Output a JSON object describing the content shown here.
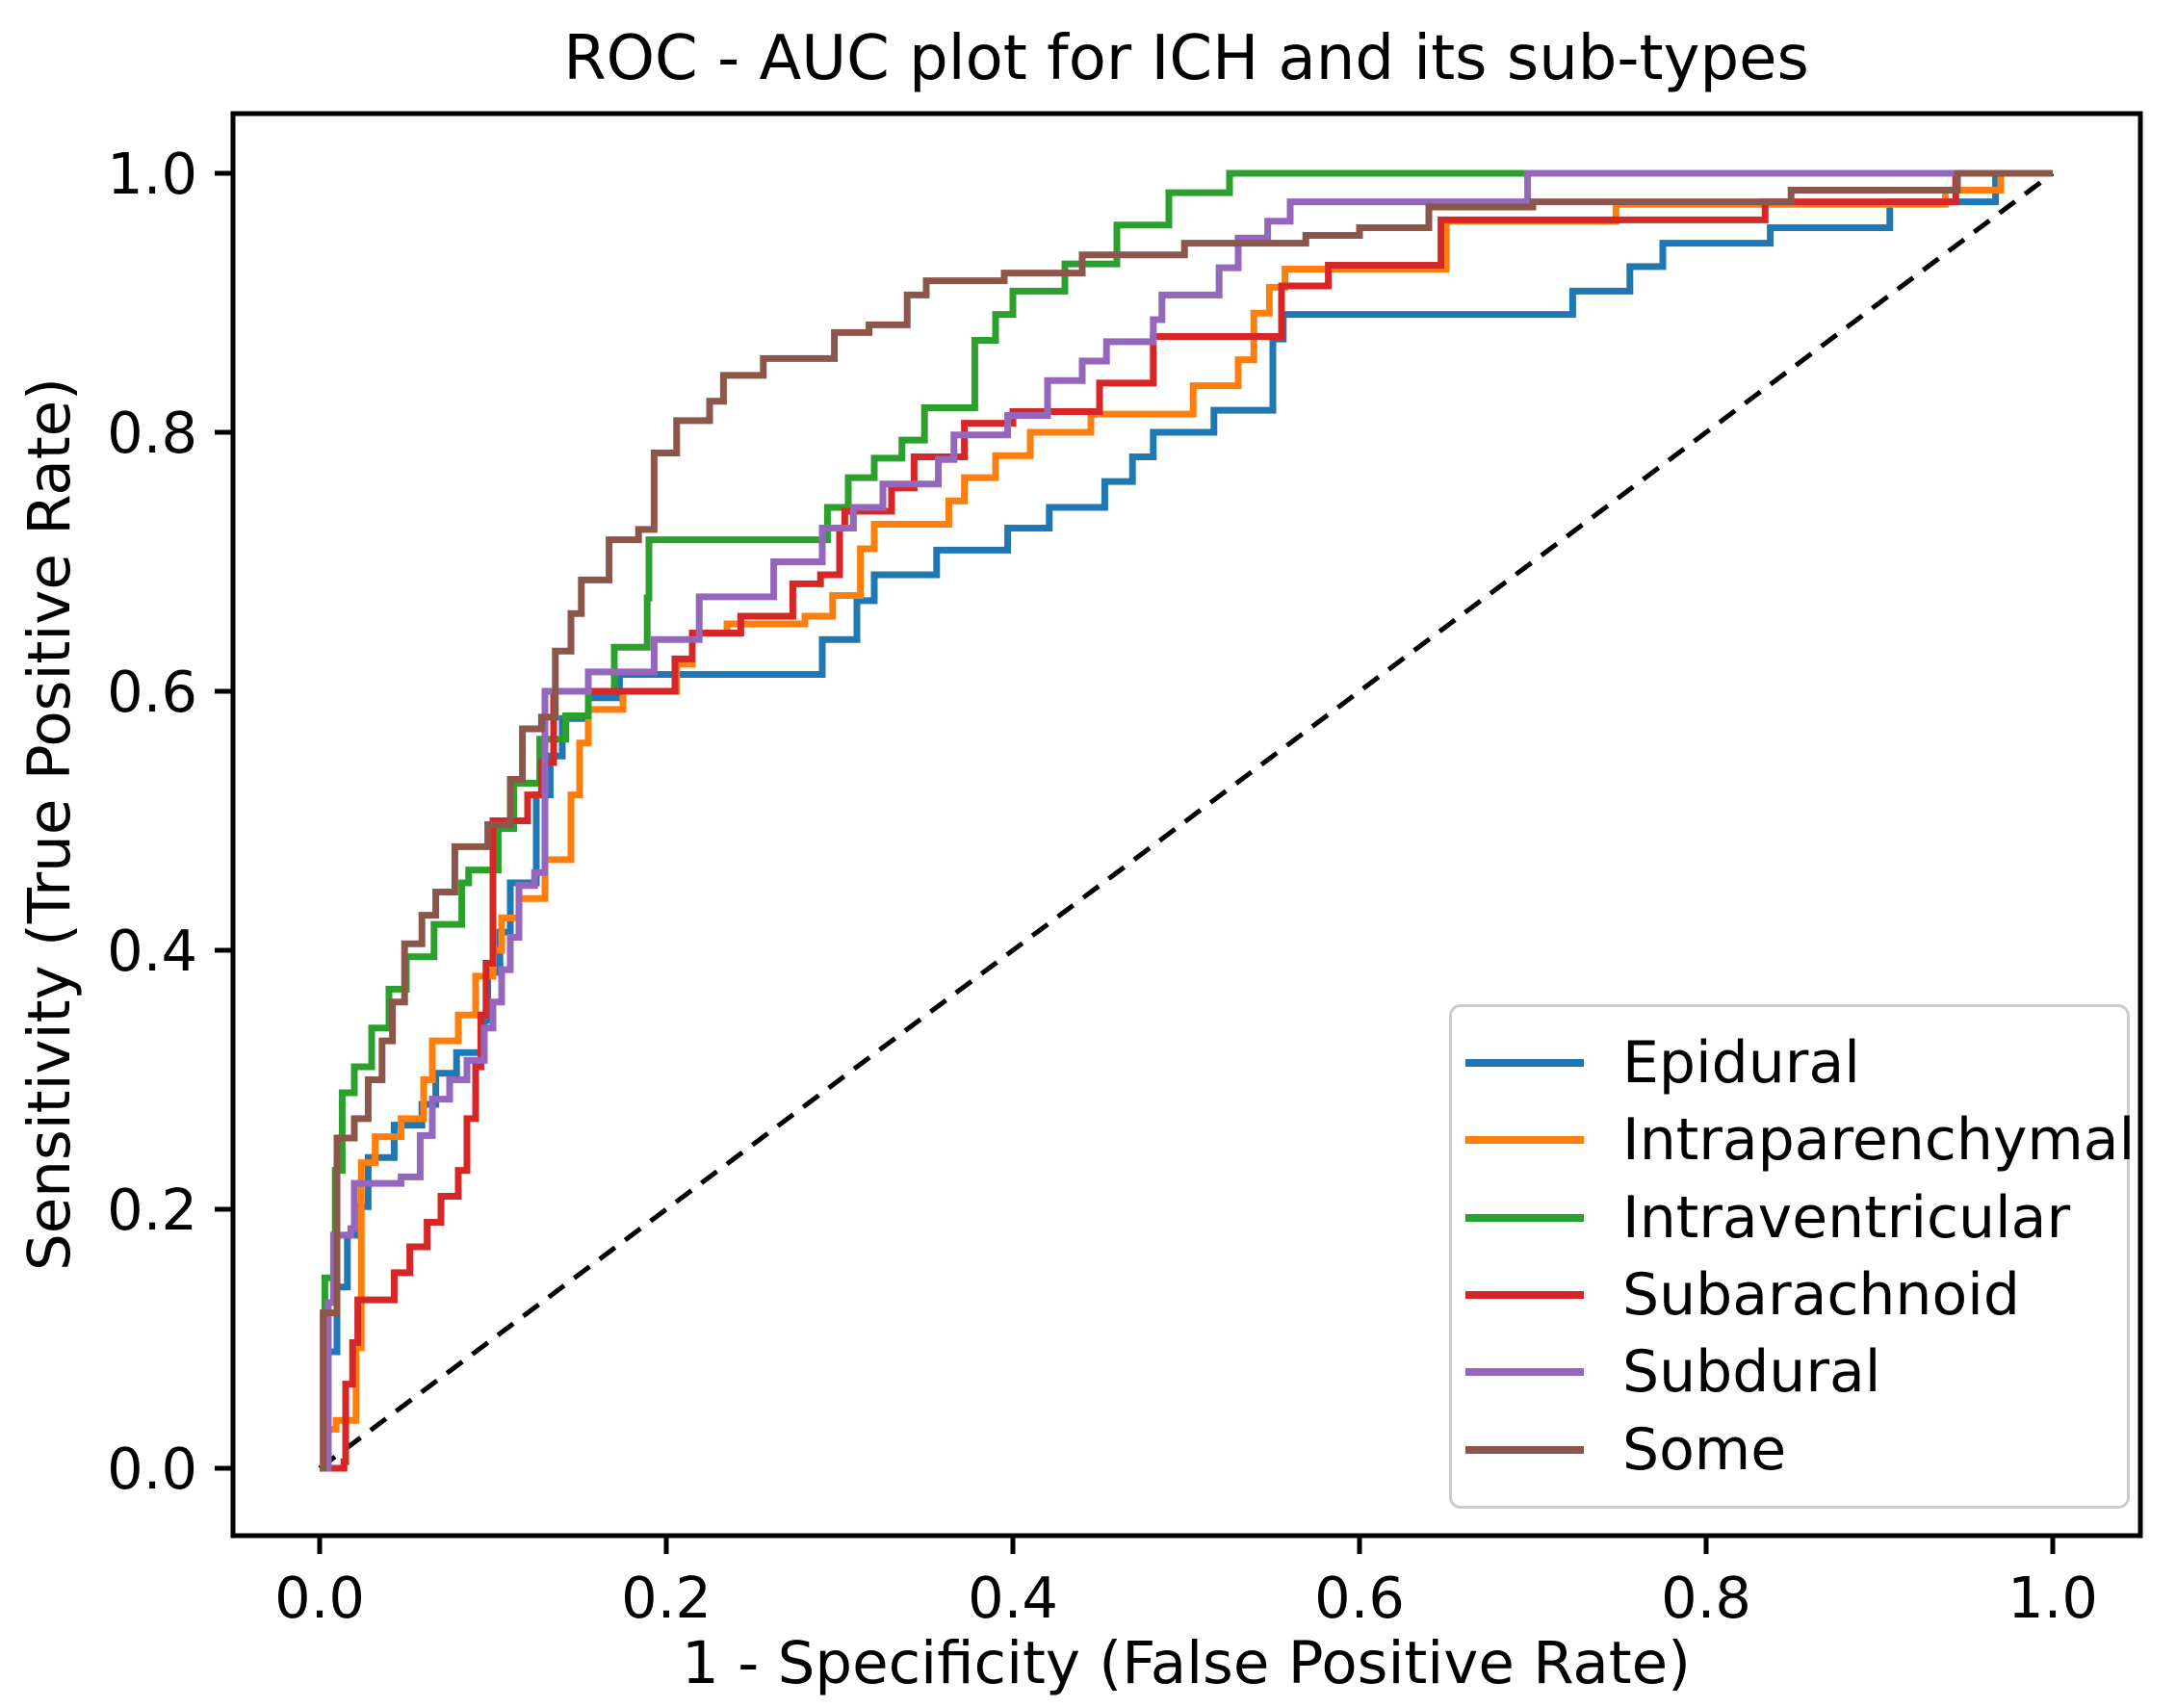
{
  "chart_data": {
    "type": "line",
    "subtype": "roc-step-curves",
    "title": "ROC - AUC plot for ICH and its sub-types",
    "xlabel": "1 - Specificity (False Positive Rate)",
    "ylabel": "Sensitivity (True Positive Rate)",
    "xlim": [
      -0.05,
      1.05
    ],
    "ylim": [
      -0.052,
      1.046
    ],
    "xticks": [
      0.0,
      0.2,
      0.4,
      0.6,
      0.8,
      1.0
    ],
    "yticks": [
      0.0,
      0.2,
      0.4,
      0.6,
      0.8,
      1.0
    ],
    "xtick_labels": [
      "0.0",
      "0.2",
      "0.4",
      "0.6",
      "0.8",
      "1.0"
    ],
    "ytick_labels": [
      "0.0",
      "0.2",
      "0.4",
      "0.6",
      "0.8",
      "1.0"
    ],
    "grid": false,
    "axis_color": "#000000",
    "legend_position": "lower right",
    "diagonal": {
      "name": "chance-line",
      "style": "dashed",
      "color": "#000000",
      "from": [
        0,
        0
      ],
      "to": [
        1,
        1
      ]
    },
    "series": [
      {
        "name": "Epidural",
        "color": "#1f77b4",
        "points": [
          [
            0,
            0
          ],
          [
            0.005,
            0.09
          ],
          [
            0.01,
            0.14
          ],
          [
            0.016,
            0.18
          ],
          [
            0.021,
            0.202
          ],
          [
            0.028,
            0.24
          ],
          [
            0.043,
            0.265
          ],
          [
            0.059,
            0.281
          ],
          [
            0.067,
            0.305
          ],
          [
            0.079,
            0.321
          ],
          [
            0.095,
            0.346
          ],
          [
            0.097,
            0.383
          ],
          [
            0.104,
            0.414
          ],
          [
            0.11,
            0.452
          ],
          [
            0.125,
            0.52
          ],
          [
            0.133,
            0.55
          ],
          [
            0.14,
            0.579
          ],
          [
            0.155,
            0.595
          ],
          [
            0.173,
            0.613
          ],
          [
            0.29,
            0.64
          ],
          [
            0.31,
            0.67
          ],
          [
            0.32,
            0.69
          ],
          [
            0.356,
            0.709
          ],
          [
            0.397,
            0.726
          ],
          [
            0.421,
            0.742
          ],
          [
            0.453,
            0.762
          ],
          [
            0.469,
            0.781
          ],
          [
            0.481,
            0.8
          ],
          [
            0.516,
            0.817
          ],
          [
            0.55,
            0.872
          ],
          [
            0.556,
            0.891
          ],
          [
            0.723,
            0.909
          ],
          [
            0.756,
            0.928
          ],
          [
            0.775,
            0.946
          ],
          [
            0.837,
            0.958
          ],
          [
            0.906,
            0.978
          ],
          [
            0.967,
            1.0
          ],
          [
            1,
            1
          ]
        ]
      },
      {
        "name": "Intraparenchymal",
        "color": "#ff7f0e",
        "points": [
          [
            0,
            0
          ],
          [
            0.004,
            0.03
          ],
          [
            0.0095,
            0.037
          ],
          [
            0.021,
            0.093
          ],
          [
            0.024,
            0.236
          ],
          [
            0.032,
            0.256
          ],
          [
            0.047,
            0.27
          ],
          [
            0.06,
            0.3
          ],
          [
            0.065,
            0.33
          ],
          [
            0.08,
            0.35
          ],
          [
            0.09,
            0.38
          ],
          [
            0.1,
            0.4
          ],
          [
            0.105,
            0.425
          ],
          [
            0.115,
            0.44
          ],
          [
            0.13,
            0.47
          ],
          [
            0.145,
            0.52
          ],
          [
            0.15,
            0.56
          ],
          [
            0.155,
            0.586
          ],
          [
            0.175,
            0.6
          ],
          [
            0.206,
            0.621
          ],
          [
            0.215,
            0.645
          ],
          [
            0.235,
            0.652
          ],
          [
            0.28,
            0.658
          ],
          [
            0.296,
            0.674
          ],
          [
            0.312,
            0.71
          ],
          [
            0.32,
            0.729
          ],
          [
            0.363,
            0.747
          ],
          [
            0.372,
            0.765
          ],
          [
            0.39,
            0.782
          ],
          [
            0.41,
            0.8
          ],
          [
            0.445,
            0.814
          ],
          [
            0.504,
            0.836
          ],
          [
            0.53,
            0.856
          ],
          [
            0.539,
            0.892
          ],
          [
            0.548,
            0.912
          ],
          [
            0.557,
            0.926
          ],
          [
            0.65,
            0.963
          ],
          [
            0.748,
            0.976
          ],
          [
            0.938,
            0.987
          ],
          [
            0.97,
            1.0
          ],
          [
            1,
            1
          ]
        ]
      },
      {
        "name": "Intraventricular",
        "color": "#2ca02c",
        "points": [
          [
            0,
            0
          ],
          [
            0.003,
            0.147
          ],
          [
            0.009,
            0.23
          ],
          [
            0.013,
            0.29
          ],
          [
            0.02,
            0.31
          ],
          [
            0.03,
            0.34
          ],
          [
            0.04,
            0.37
          ],
          [
            0.05,
            0.395
          ],
          [
            0.066,
            0.42
          ],
          [
            0.082,
            0.452
          ],
          [
            0.086,
            0.462
          ],
          [
            0.103,
            0.494
          ],
          [
            0.112,
            0.529
          ],
          [
            0.127,
            0.563
          ],
          [
            0.142,
            0.581
          ],
          [
            0.155,
            0.6
          ],
          [
            0.17,
            0.634
          ],
          [
            0.189,
            0.672
          ],
          [
            0.19,
            0.717
          ],
          [
            0.293,
            0.742
          ],
          [
            0.305,
            0.765
          ],
          [
            0.32,
            0.78
          ],
          [
            0.336,
            0.794
          ],
          [
            0.349,
            0.819
          ],
          [
            0.378,
            0.871
          ],
          [
            0.39,
            0.891
          ],
          [
            0.4,
            0.909
          ],
          [
            0.43,
            0.93
          ],
          [
            0.46,
            0.96
          ],
          [
            0.49,
            0.985
          ],
          [
            0.525,
            1.0
          ],
          [
            1,
            1
          ]
        ]
      },
      {
        "name": "Subarachnoid",
        "color": "#d62728",
        "points": [
          [
            0,
            0
          ],
          [
            0.014,
            0.005
          ],
          [
            0.015,
            0.065
          ],
          [
            0.019,
            0.097
          ],
          [
            0.022,
            0.13
          ],
          [
            0.043,
            0.151
          ],
          [
            0.052,
            0.171
          ],
          [
            0.062,
            0.19
          ],
          [
            0.07,
            0.21
          ],
          [
            0.08,
            0.23
          ],
          [
            0.085,
            0.27
          ],
          [
            0.09,
            0.31
          ],
          [
            0.093,
            0.35
          ],
          [
            0.096,
            0.39
          ],
          [
            0.1,
            0.5
          ],
          [
            0.12,
            0.52
          ],
          [
            0.128,
            0.545
          ],
          [
            0.135,
            0.6
          ],
          [
            0.205,
            0.625
          ],
          [
            0.215,
            0.645
          ],
          [
            0.243,
            0.658
          ],
          [
            0.273,
            0.683
          ],
          [
            0.289,
            0.69
          ],
          [
            0.3,
            0.726
          ],
          [
            0.303,
            0.739
          ],
          [
            0.33,
            0.757
          ],
          [
            0.343,
            0.781
          ],
          [
            0.372,
            0.807
          ],
          [
            0.4,
            0.816
          ],
          [
            0.45,
            0.838
          ],
          [
            0.481,
            0.874
          ],
          [
            0.555,
            0.913
          ],
          [
            0.582,
            0.929
          ],
          [
            0.647,
            0.964
          ],
          [
            0.834,
            0.978
          ],
          [
            0.944,
            1.0
          ],
          [
            1,
            1
          ]
        ]
      },
      {
        "name": "Subdural",
        "color": "#9467bd",
        "points": [
          [
            0,
            0
          ],
          [
            0.005,
            0.128
          ],
          [
            0.008,
            0.18
          ],
          [
            0.018,
            0.185
          ],
          [
            0.02,
            0.22
          ],
          [
            0.047,
            0.225
          ],
          [
            0.058,
            0.257
          ],
          [
            0.065,
            0.285
          ],
          [
            0.075,
            0.3
          ],
          [
            0.085,
            0.315
          ],
          [
            0.095,
            0.34
          ],
          [
            0.1,
            0.36
          ],
          [
            0.105,
            0.385
          ],
          [
            0.11,
            0.41
          ],
          [
            0.115,
            0.45
          ],
          [
            0.124,
            0.46
          ],
          [
            0.13,
            0.6
          ],
          [
            0.155,
            0.615
          ],
          [
            0.193,
            0.64
          ],
          [
            0.219,
            0.673
          ],
          [
            0.262,
            0.7
          ],
          [
            0.29,
            0.726
          ],
          [
            0.308,
            0.742
          ],
          [
            0.325,
            0.76
          ],
          [
            0.357,
            0.779
          ],
          [
            0.366,
            0.798
          ],
          [
            0.397,
            0.813
          ],
          [
            0.42,
            0.84
          ],
          [
            0.44,
            0.855
          ],
          [
            0.454,
            0.87
          ],
          [
            0.481,
            0.887
          ],
          [
            0.486,
            0.906
          ],
          [
            0.519,
            0.927
          ],
          [
            0.53,
            0.95
          ],
          [
            0.547,
            0.963
          ],
          [
            0.56,
            0.978
          ],
          [
            0.697,
            1.0
          ],
          [
            1,
            1
          ]
        ]
      },
      {
        "name": "Some",
        "color": "#8c564b",
        "points": [
          [
            0,
            0
          ],
          [
            0.002,
            0.12
          ],
          [
            0.01,
            0.255
          ],
          [
            0.02,
            0.27
          ],
          [
            0.028,
            0.3
          ],
          [
            0.036,
            0.33
          ],
          [
            0.042,
            0.36
          ],
          [
            0.049,
            0.405
          ],
          [
            0.059,
            0.427
          ],
          [
            0.067,
            0.445
          ],
          [
            0.078,
            0.48
          ],
          [
            0.097,
            0.497
          ],
          [
            0.11,
            0.532
          ],
          [
            0.117,
            0.571
          ],
          [
            0.128,
            0.58
          ],
          [
            0.136,
            0.631
          ],
          [
            0.145,
            0.66
          ],
          [
            0.151,
            0.686
          ],
          [
            0.167,
            0.717
          ],
          [
            0.184,
            0.725
          ],
          [
            0.193,
            0.784
          ],
          [
            0.206,
            0.809
          ],
          [
            0.225,
            0.824
          ],
          [
            0.233,
            0.844
          ],
          [
            0.256,
            0.857
          ],
          [
            0.297,
            0.877
          ],
          [
            0.317,
            0.883
          ],
          [
            0.339,
            0.906
          ],
          [
            0.35,
            0.917
          ],
          [
            0.395,
            0.923
          ],
          [
            0.44,
            0.937
          ],
          [
            0.499,
            0.946
          ],
          [
            0.569,
            0.952
          ],
          [
            0.6,
            0.958
          ],
          [
            0.64,
            0.974
          ],
          [
            0.7,
            0.978
          ],
          [
            0.849,
            0.987
          ],
          [
            0.945,
            1.0
          ],
          [
            1,
            1
          ]
        ]
      }
    ]
  }
}
